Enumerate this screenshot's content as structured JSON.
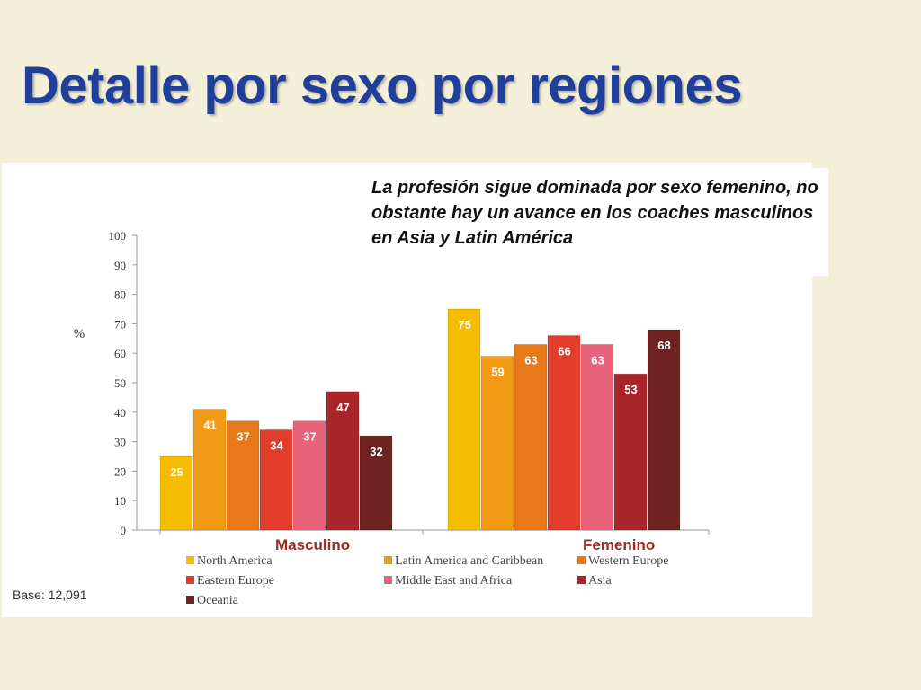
{
  "slide": {
    "title": "Detalle por sexo por regiones",
    "callout": "La profesión sigue dominada por sexo femenino, no obstante hay un avance en los coaches masculinos en Asia y Latin América",
    "group_label_male": "Masculino",
    "group_label_female": "Femenino",
    "base_note": "Base: 12,091"
  },
  "chart_data": {
    "type": "bar",
    "ylabel": "%",
    "ylim": [
      0,
      100
    ],
    "yticks": [
      0,
      10,
      20,
      30,
      40,
      50,
      60,
      70,
      80,
      90,
      100
    ],
    "categories": [
      "Masculino",
      "Femenino"
    ],
    "series": [
      {
        "name": "North America",
        "color": "#f5bc00",
        "values": [
          25,
          75
        ]
      },
      {
        "name": "Latin America and Caribbean",
        "color": "#f29a16",
        "values": [
          41,
          59
        ]
      },
      {
        "name": "Western Europe",
        "color": "#e7791a",
        "values": [
          37,
          63
        ]
      },
      {
        "name": "Eastern Europe",
        "color": "#e23c2a",
        "values": [
          34,
          66
        ]
      },
      {
        "name": "Middle East and Africa",
        "color": "#e8637a",
        "values": [
          37,
          63
        ]
      },
      {
        "name": "Asia",
        "color": "#a8262a",
        "values": [
          47,
          53
        ]
      },
      {
        "name": "Oceania",
        "color": "#6e2320",
        "values": [
          32,
          68
        ]
      }
    ],
    "grid": false,
    "legend": "bottom"
  }
}
